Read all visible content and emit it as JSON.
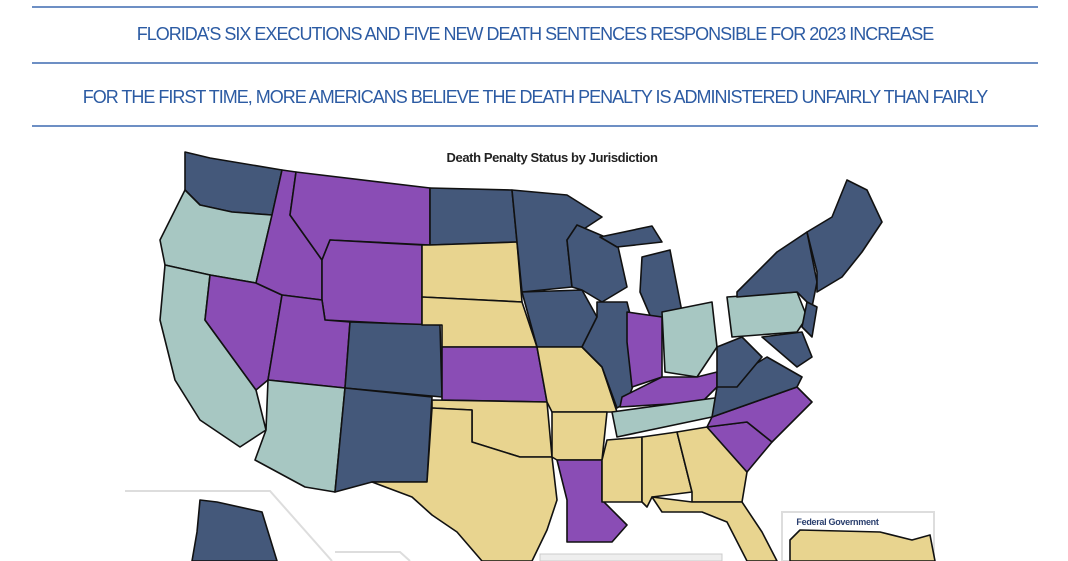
{
  "headlines": [
    "FLORIDA’S SIX EXECUTIONS AND FIVE NEW DEATH SENTENCES RESPONSIBLE FOR 2023 INCREASE",
    "FOR THE FIRST TIME, MORE AMERICANS BELIEVE THE DEATH PENALTY IS ADMINISTERED UNFAIRLY THAN FAIRLY"
  ],
  "map": {
    "title": "Death Penalty Status by Jurisdiction",
    "federal_inset_label": "Federal Government",
    "colors": {
      "navy": "#44587a",
      "purple": "#8a4db5",
      "tan": "#e8d48f",
      "teal": "#a7c7c2",
      "headline": "#2c5ba3"
    },
    "states": {
      "WA": "navy",
      "OR": "teal",
      "CA": "teal",
      "NV": "purple",
      "ID": "purple",
      "MT": "purple",
      "WY": "purple",
      "UT": "purple",
      "AZ": "teal",
      "CO": "navy",
      "NM": "navy",
      "ND": "navy",
      "SD": "tan",
      "NE": "tan",
      "KS": "purple",
      "OK": "tan",
      "TX": "tan",
      "MN": "navy",
      "IA": "navy",
      "MO": "tan",
      "AR": "tan",
      "LA": "purple",
      "WI": "navy",
      "IL": "navy",
      "MI": "navy",
      "IN": "purple",
      "OH": "teal",
      "KY": "purple",
      "TN": "teal",
      "MS": "tan",
      "AL": "tan",
      "GA": "tan",
      "FL": "tan",
      "SC": "purple",
      "NC": "purple",
      "VA": "navy",
      "WV": "navy",
      "PA": "teal",
      "NY": "navy",
      "NJ": "navy",
      "MD": "navy",
      "NE-region": "navy",
      "AK": "navy",
      "FED": "tan"
    }
  }
}
